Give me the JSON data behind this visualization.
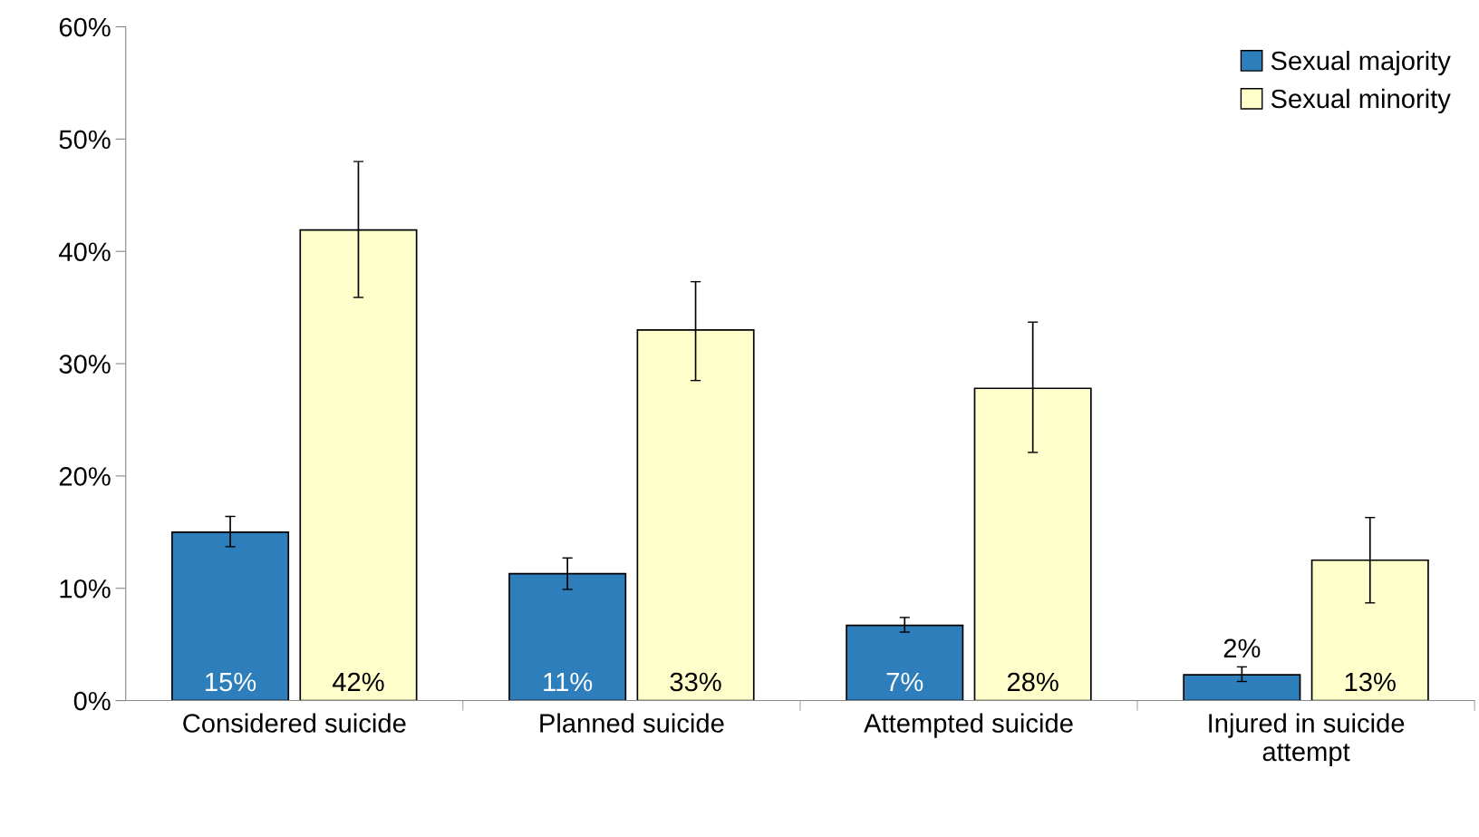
{
  "chart_data": {
    "type": "bar",
    "categories": [
      "Considered suicide",
      "Planned suicide",
      "Attempted suicide",
      "Injured in suicide\nattempt"
    ],
    "series": [
      {
        "name": "Sexual majority",
        "color": "#2e7ebc",
        "values": [
          15.0,
          11.3,
          6.7,
          2.3
        ],
        "errors": [
          [
            13.7,
            16.4
          ],
          [
            9.9,
            12.7
          ],
          [
            6.1,
            7.4
          ],
          [
            1.7,
            3.0
          ]
        ],
        "value_labels": [
          "15%",
          "11%",
          "7%",
          "2%"
        ]
      },
      {
        "name": "Sexual minority",
        "color": "#ffffcc",
        "values": [
          41.9,
          33.0,
          27.8,
          12.5
        ],
        "errors": [
          [
            35.9,
            48.0
          ],
          [
            28.5,
            37.3
          ],
          [
            22.1,
            33.7
          ],
          [
            8.7,
            16.3
          ]
        ],
        "value_labels": [
          "42%",
          "33%",
          "28%",
          "13%"
        ]
      }
    ],
    "ylim": [
      0,
      60
    ],
    "yticks": [
      {
        "value": 0,
        "label": "0%"
      },
      {
        "value": 10,
        "label": "10%"
      },
      {
        "value": 20,
        "label": "20%"
      },
      {
        "value": 30,
        "label": "30%"
      },
      {
        "value": 40,
        "label": "40%"
      },
      {
        "value": 50,
        "label": "50%"
      },
      {
        "value": 60,
        "label": "60%"
      }
    ],
    "grid": false,
    "legend": "top right"
  }
}
